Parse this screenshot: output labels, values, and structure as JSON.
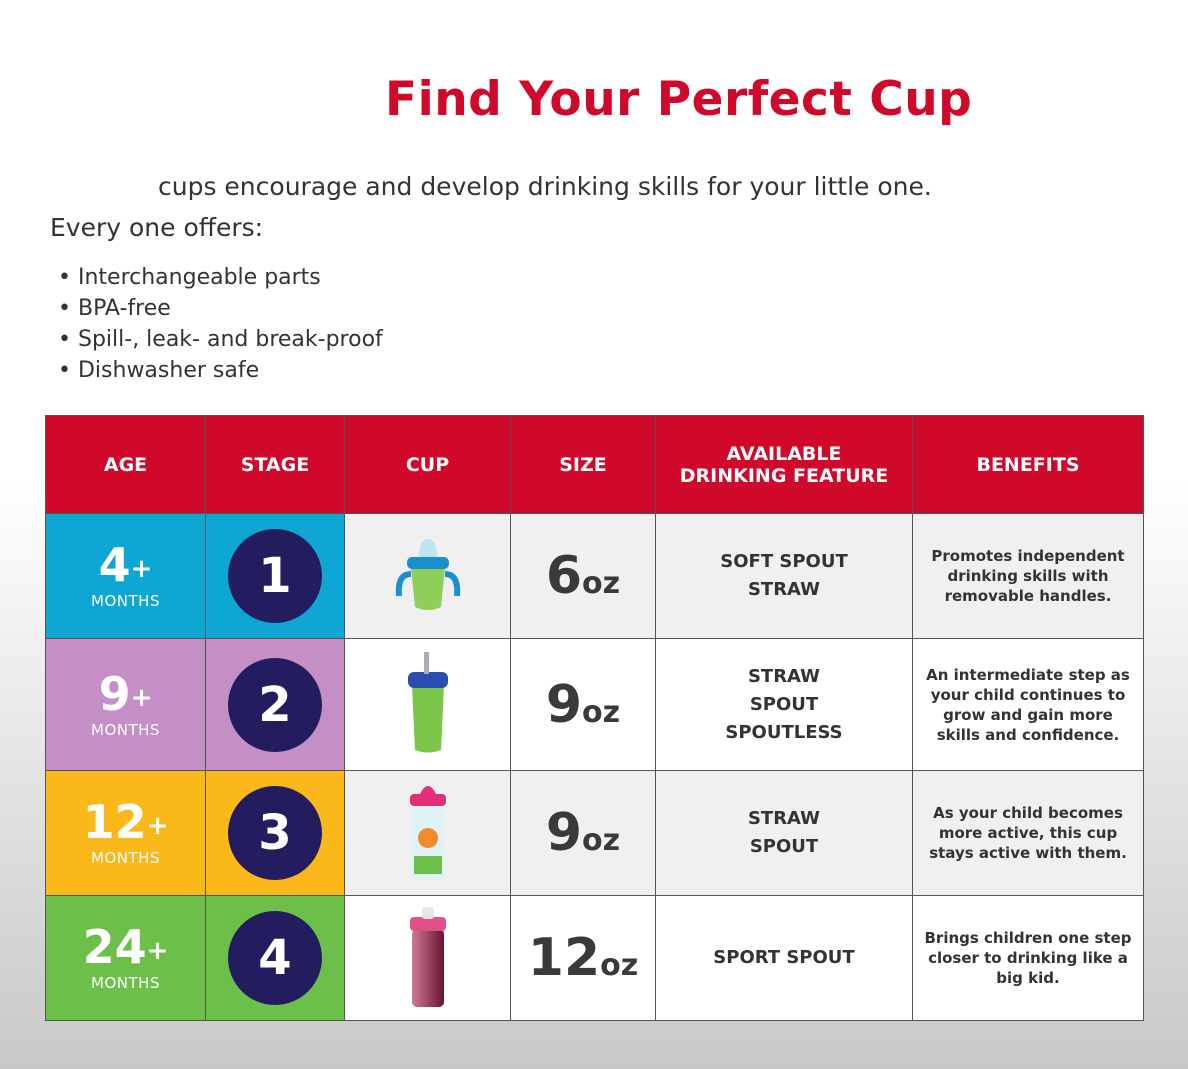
{
  "title": "Find Your Perfect Cup",
  "intro": "cups encourage and develop drinking skills for your little one.",
  "offers_label": "Every one offers:",
  "bullets": [
    "Interchangeable parts",
    "BPA-free",
    "Spill-, leak- and break-proof",
    "Dishwasher safe"
  ],
  "headers": [
    "AGE",
    "STAGE",
    "CUP",
    "SIZE",
    "AVAILABLE DRINKING FEATURE",
    "BENEFITS"
  ],
  "rows": [
    {
      "age": "4",
      "plus": "+",
      "months": "MONTHS",
      "stage": "1",
      "size": "6",
      "unit": "oz",
      "features": [
        "SOFT SPOUT",
        "STRAW"
      ],
      "benefit": "Promotes independent drinking skills with removable handles.",
      "color": "#0ea7d3",
      "bg": "#f0f0f0",
      "cup": "sippy-cup-with-handles"
    },
    {
      "age": "9",
      "plus": "+",
      "months": "MONTHS",
      "stage": "2",
      "size": "9",
      "unit": "oz",
      "features": [
        "STRAW",
        "SPOUT",
        "SPOUTLESS"
      ],
      "benefit": "An intermediate step as your child continues to grow and gain more skills and confidence.",
      "color": "#c48fc4",
      "bg": "#ffffff",
      "cup": "straw-cup"
    },
    {
      "age": "12",
      "plus": "+",
      "months": "MONTHS",
      "stage": "3",
      "size": "9",
      "unit": "oz",
      "features": [
        "STRAW",
        "SPOUT"
      ],
      "benefit": "As your child becomes more active, this cup stays active with them.",
      "color": "#fbb81b",
      "bg": "#f0f0f0",
      "cup": "insulated-spout-cup"
    },
    {
      "age": "24",
      "plus": "+",
      "months": "MONTHS",
      "stage": "4",
      "size": "12",
      "unit": "oz",
      "features": [
        "SPORT SPOUT"
      ],
      "benefit": "Brings children one step closer to drinking like a big kid.",
      "color": "#6cc04a",
      "bg": "#ffffff",
      "cup": "sport-spout-cup"
    }
  ]
}
